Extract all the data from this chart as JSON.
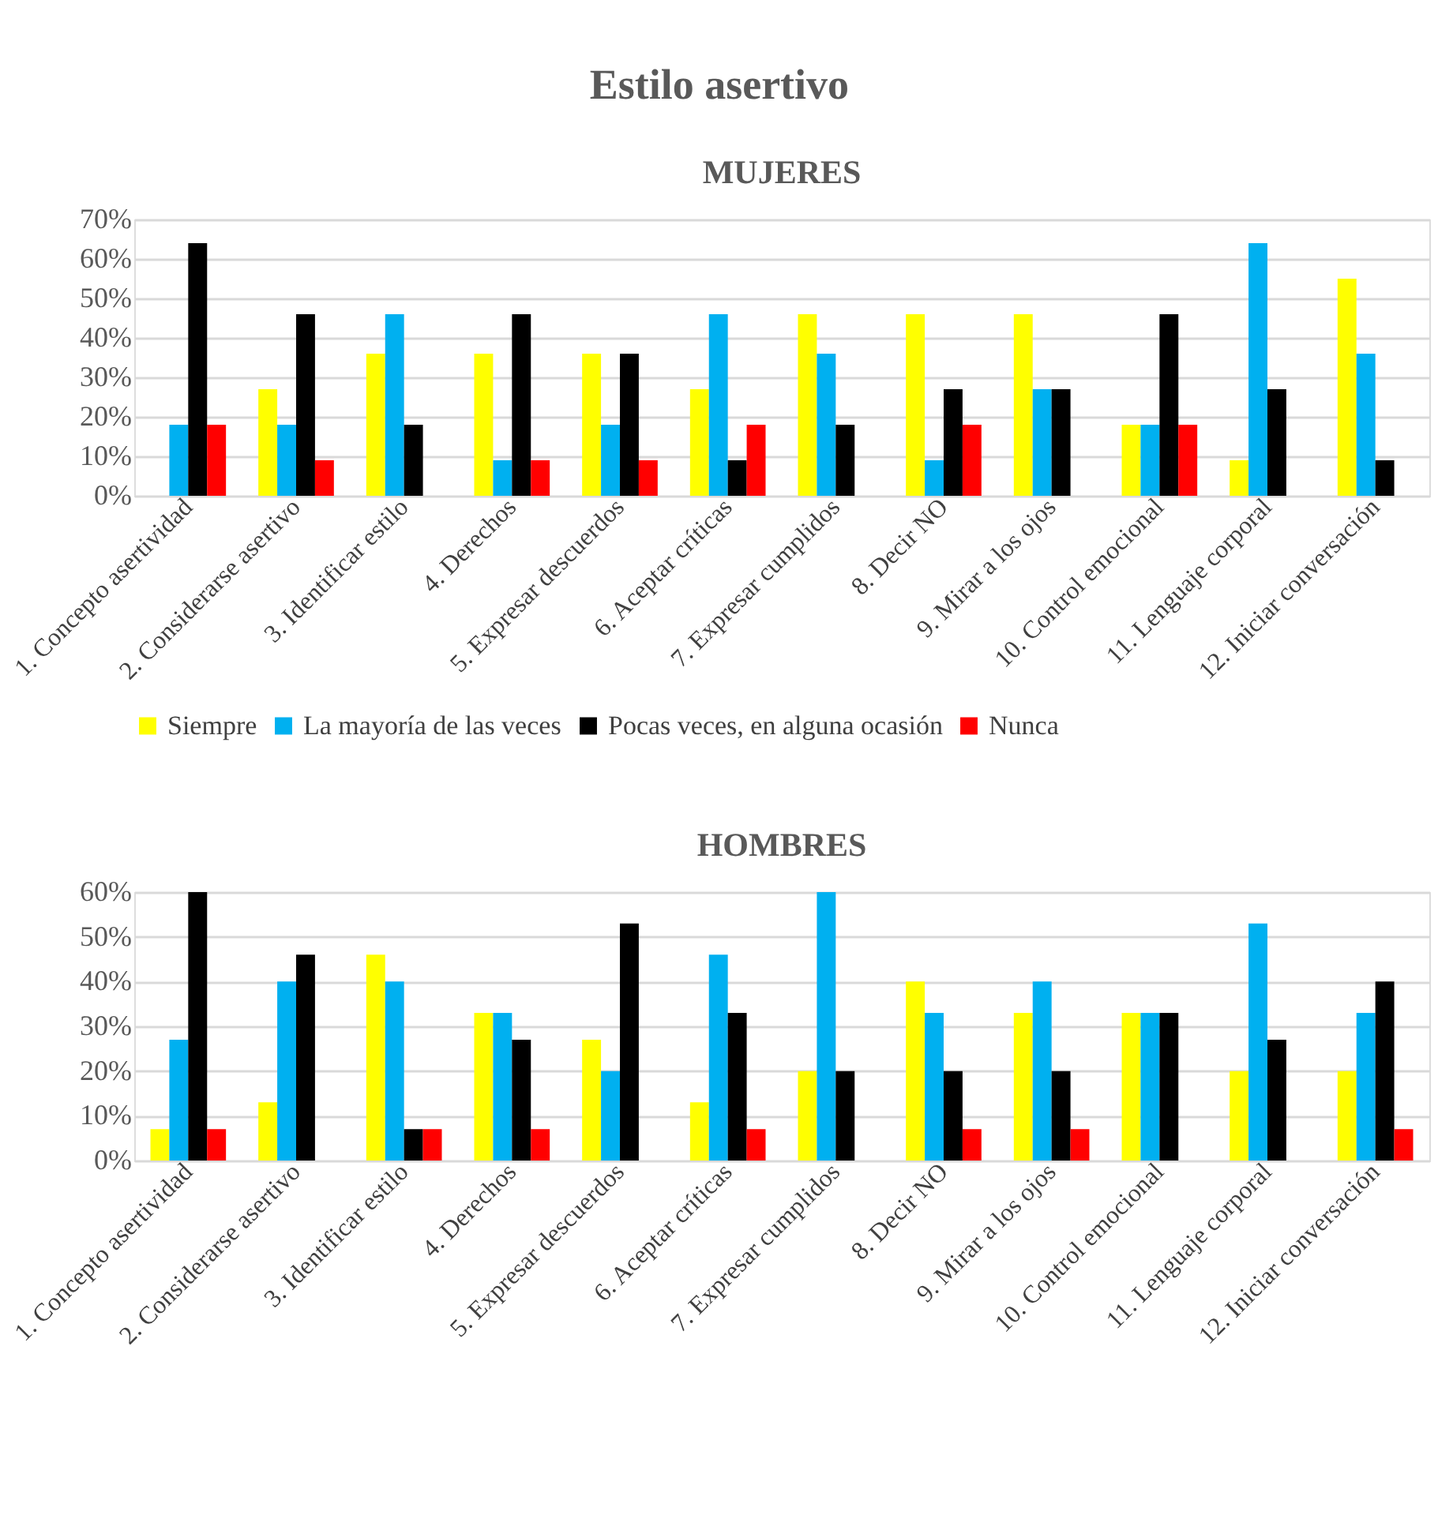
{
  "chart_data": [
    {
      "type": "bar",
      "title": "Estilo asertivo",
      "subtitle": "MUJERES",
      "categories": [
        "1. Concepto asertividad",
        "2. Considerarse asertivo",
        "3. Identificar estilo",
        "4. Derechos",
        "5. Expresar descuerdos",
        "6. Aceptar críticas",
        "7. Expresar cumplidos",
        "8. Decir NO",
        "9. Mirar a los ojos",
        "10. Control emocional",
        "11. Lenguaje corporal",
        "12. Iniciar conversación"
      ],
      "series": [
        {
          "name": "Siempre",
          "color": "#ffff00",
          "values": [
            0,
            27,
            36,
            36,
            36,
            27,
            46,
            46,
            46,
            18,
            9,
            55
          ]
        },
        {
          "name": "La mayoría de las veces",
          "color": "#00b0f0",
          "values": [
            18,
            18,
            46,
            9,
            18,
            46,
            36,
            9,
            27,
            18,
            64,
            36
          ]
        },
        {
          "name": "Pocas veces, en alguna ocasión",
          "color": "#000000",
          "values": [
            64,
            46,
            18,
            46,
            36,
            9,
            18,
            27,
            27,
            46,
            27,
            9
          ]
        },
        {
          "name": "Nunca",
          "color": "#ff0000",
          "values": [
            18,
            9,
            0,
            9,
            9,
            18,
            0,
            18,
            0,
            18,
            0,
            0
          ]
        }
      ],
      "ylim": [
        0,
        70
      ],
      "yticks": [
        {
          "value": 0,
          "label": "0%"
        },
        {
          "value": 10,
          "label": "10%"
        },
        {
          "value": 20,
          "label": "20%"
        },
        {
          "value": 30,
          "label": "30%"
        },
        {
          "value": 40,
          "label": "40%"
        },
        {
          "value": 50,
          "label": "50%"
        },
        {
          "value": 60,
          "label": "60%"
        },
        {
          "value": 70,
          "label": "70%"
        }
      ],
      "grid": "y",
      "legend": "bottom"
    },
    {
      "type": "bar",
      "subtitle": "HOMBRES",
      "categories": [
        "1. Concepto asertividad",
        "2. Considerarse asertivo",
        "3. Identificar estilo",
        "4. Derechos",
        "5. Expresar descuerdos",
        "6. Aceptar críticas",
        "7. Expresar cumplidos",
        "8. Decir NO",
        "9. Mirar a los ojos",
        "10. Control emocional",
        "11. Lenguaje corporal",
        "12. Iniciar conversación"
      ],
      "series": [
        {
          "color": "#ffff00",
          "values": [
            7,
            13,
            46,
            33,
            27,
            13,
            20,
            40,
            33,
            33,
            20,
            20
          ]
        },
        {
          "color": "#00b0f0",
          "values": [
            27,
            40,
            40,
            33,
            20,
            46,
            60,
            33,
            40,
            33,
            53,
            33
          ]
        },
        {
          "color": "#000000",
          "values": [
            60,
            46,
            7,
            27,
            53,
            33,
            20,
            20,
            20,
            33,
            27,
            40
          ]
        },
        {
          "color": "#ff0000",
          "values": [
            7,
            0,
            7,
            7,
            0,
            7,
            0,
            7,
            7,
            0,
            0,
            7
          ]
        }
      ],
      "ylim": [
        0,
        60
      ],
      "yticks": [
        {
          "value": 0,
          "label": "0%"
        },
        {
          "value": 10,
          "label": "10%"
        },
        {
          "value": 20,
          "label": "20%"
        },
        {
          "value": 30,
          "label": "30%"
        },
        {
          "value": 40,
          "label": "40%"
        },
        {
          "value": 50,
          "label": "50%"
        },
        {
          "value": 60,
          "label": "60%"
        }
      ],
      "grid": "y",
      "legend": false
    }
  ]
}
